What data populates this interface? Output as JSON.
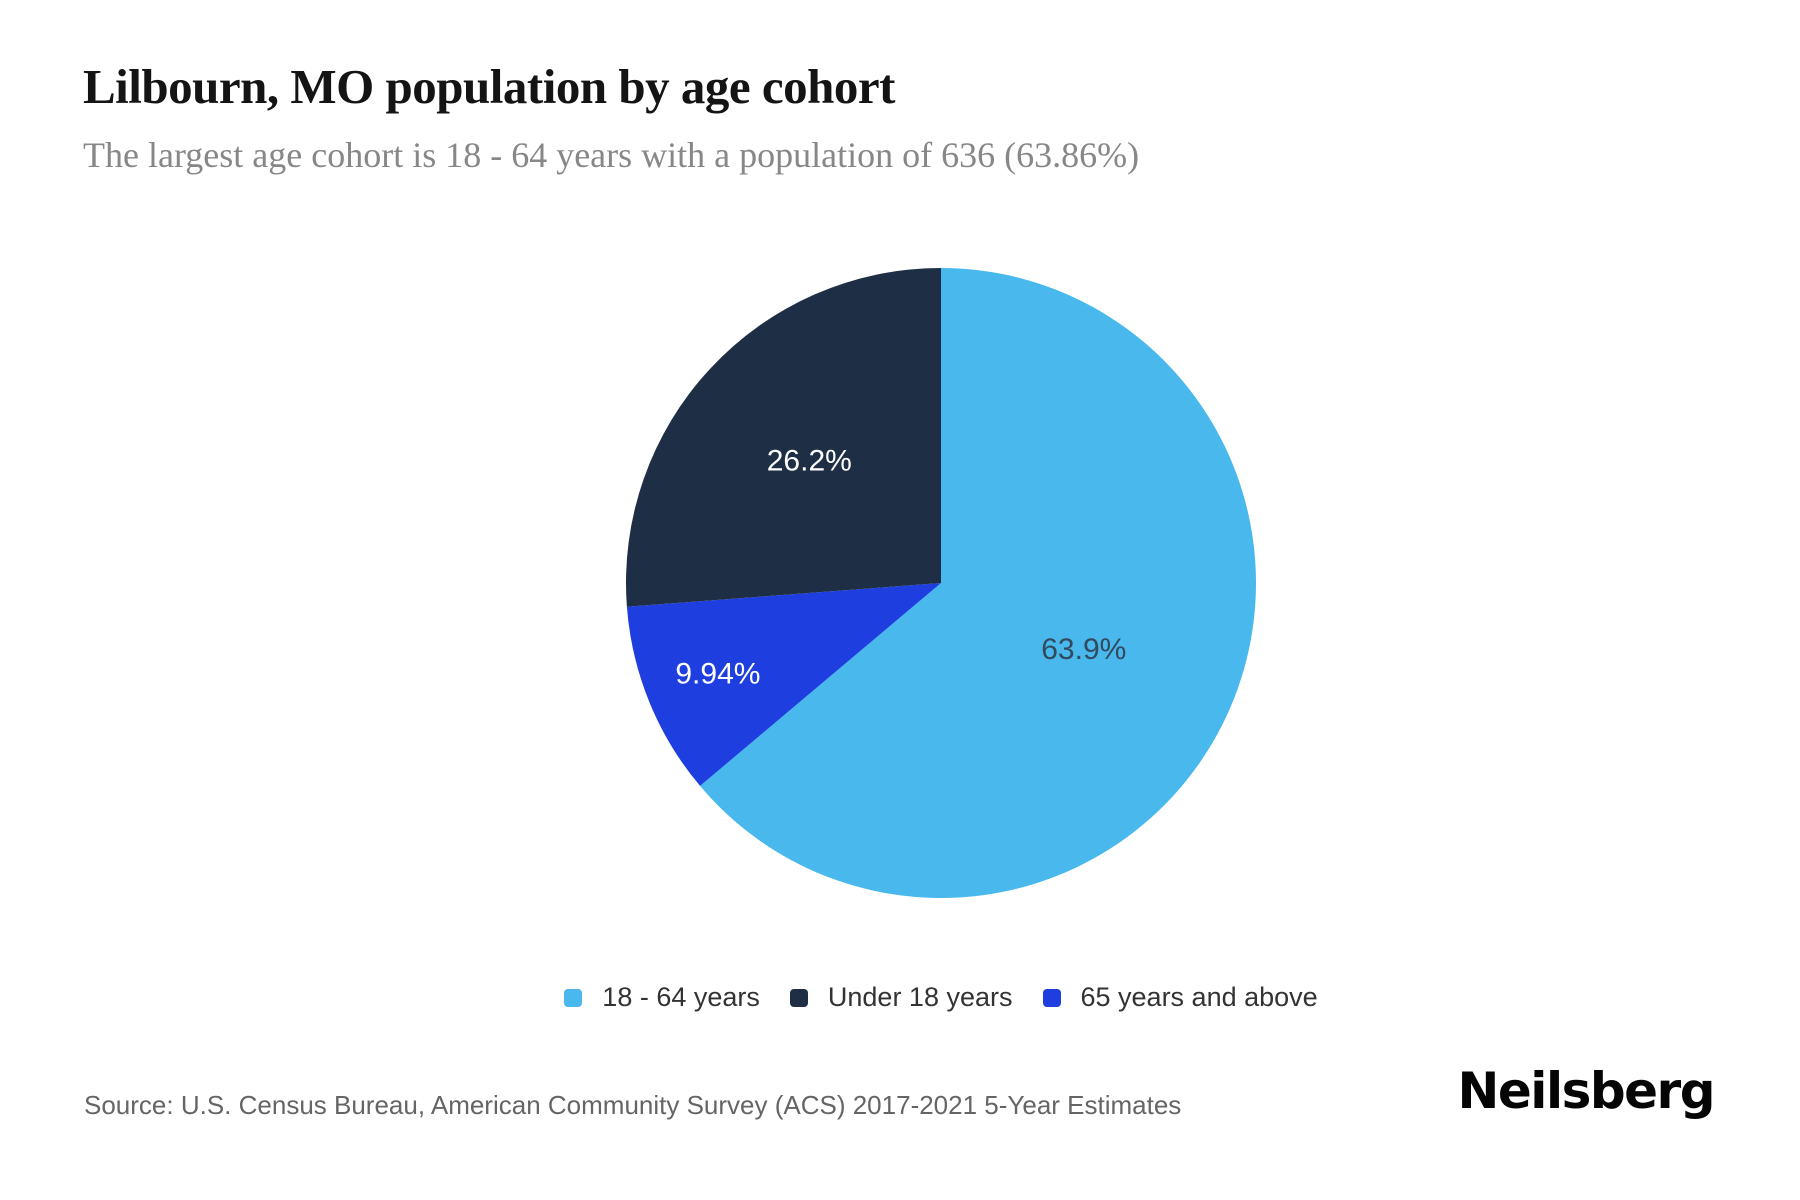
{
  "chart_data": {
    "type": "pie",
    "title": "Lilbourn, MO population by age cohort",
    "subtitle": "The largest age cohort is 18 - 64 years with a population of 636 (63.86%)",
    "unit": "percent",
    "start_angle_deg": 0,
    "direction": "clockwise",
    "slices": [
      {
        "label": "18 - 64 years",
        "pct": 63.86,
        "data_label": "63.9%",
        "color": "#49B8ED",
        "label_color": "#334A5E",
        "label_radius_frac": 0.5
      },
      {
        "label": "65 years and above",
        "pct": 9.94,
        "data_label": "9.94%",
        "color": "#1E3EE0",
        "label_color": "#FFFFFF",
        "label_radius_frac": 0.765
      },
      {
        "label": "Under 18 years",
        "pct": 26.2,
        "data_label": "26.2%",
        "color": "#1E2F45",
        "label_color": "#FFFFFF",
        "label_radius_frac": 0.57
      }
    ],
    "legend": {
      "position": "bottom-center",
      "items": [
        {
          "label": "18 - 64 years",
          "color": "#49B8ED"
        },
        {
          "label": "Under 18 years",
          "color": "#1E2F45"
        },
        {
          "label": "65 years and above",
          "color": "#1E3EE0"
        }
      ]
    }
  },
  "footer": {
    "source": "Source: U.S. Census Bureau, American Community Survey (ACS) 2017-2021 5-Year Estimates",
    "brand": "Neilsberg"
  }
}
